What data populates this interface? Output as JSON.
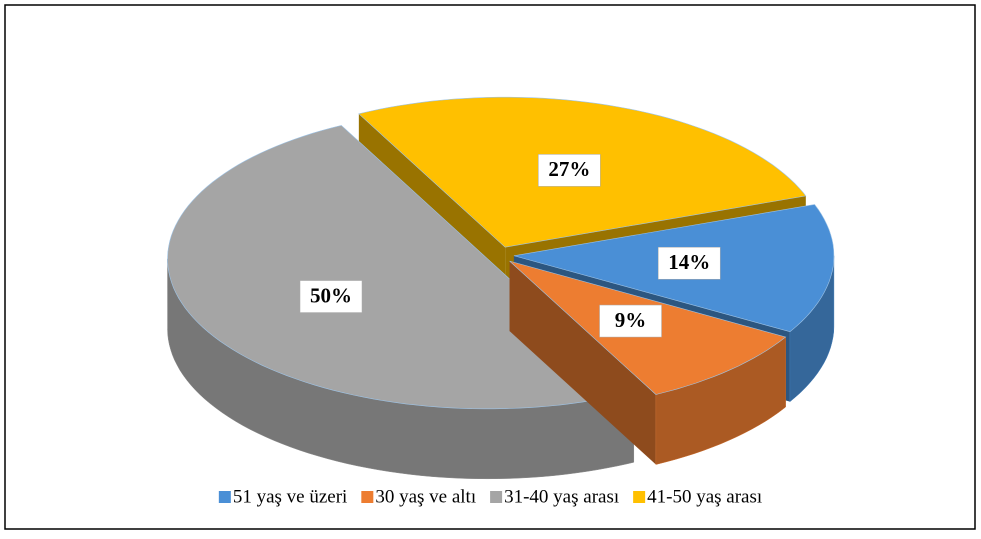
{
  "chart_data": {
    "type": "pie3d",
    "categories": [
      "51 yaş ve üzeri",
      "30 yaş ve altı",
      "31-40 yaş arası",
      "41-50 yaş arası"
    ],
    "values": [
      14,
      9,
      50,
      27
    ],
    "value_labels": [
      "14%",
      "9%",
      "50%",
      "27%"
    ],
    "colors": [
      "#4a8fd6",
      "#ed7d31",
      "#a5a5a5",
      "#ffc000"
    ],
    "legend": "bottom"
  }
}
